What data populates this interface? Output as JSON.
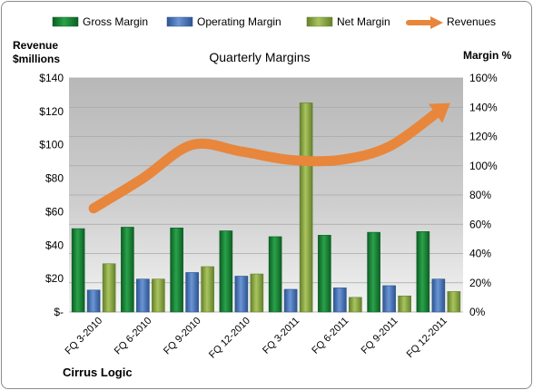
{
  "chart_data": {
    "type": "bar",
    "title": "Quarterly Margins",
    "company": "Cirrus Logic",
    "left_axis_label_line1": "Revenue",
    "left_axis_label_line2": "$millions",
    "right_axis_label": "Margin %",
    "categories": [
      "FQ 3-2010",
      "FQ 6-2010",
      "FQ 9-2010",
      "FQ 12-2010",
      "FQ 3-2011",
      "FQ 6-2011",
      "FQ 9-2011",
      "FQ 12-2011"
    ],
    "left_axis": {
      "ylim": [
        0,
        140
      ],
      "ticks": [
        0,
        20,
        40,
        60,
        80,
        100,
        120,
        140
      ],
      "tick_labels": [
        "$-",
        "$20",
        "$40",
        "$60",
        "$80",
        "$100",
        "$120",
        "$140"
      ]
    },
    "right_axis": {
      "ylim": [
        0,
        160
      ],
      "ticks": [
        0,
        20,
        40,
        60,
        80,
        100,
        120,
        140,
        160
      ],
      "tick_labels": [
        "0%",
        "20%",
        "40%",
        "60%",
        "80%",
        "100%",
        "120%",
        "140%",
        "160%"
      ]
    },
    "series": [
      {
        "name": "Gross Margin",
        "kind": "bar",
        "axis": "right",
        "color": "#1a8a3a",
        "values": [
          57,
          58,
          57.5,
          55.5,
          51.5,
          52.5,
          54.5,
          55
        ]
      },
      {
        "name": "Operating Margin",
        "kind": "bar",
        "axis": "right",
        "color": "#4a78c0",
        "values": [
          15,
          22.5,
          27,
          24.5,
          15.5,
          16.5,
          18,
          22.5
        ]
      },
      {
        "name": "Net Margin",
        "kind": "bar",
        "axis": "right",
        "color": "#8fb04a",
        "values": [
          33,
          22.5,
          31,
          26,
          143,
          10,
          11,
          14
        ]
      },
      {
        "name": "Revenues",
        "kind": "line",
        "axis": "left",
        "color": "#e8863c",
        "values": [
          62,
          80,
          100,
          96,
          91,
          91,
          99,
          120
        ]
      }
    ],
    "legend_position": "top",
    "grid": true
  }
}
